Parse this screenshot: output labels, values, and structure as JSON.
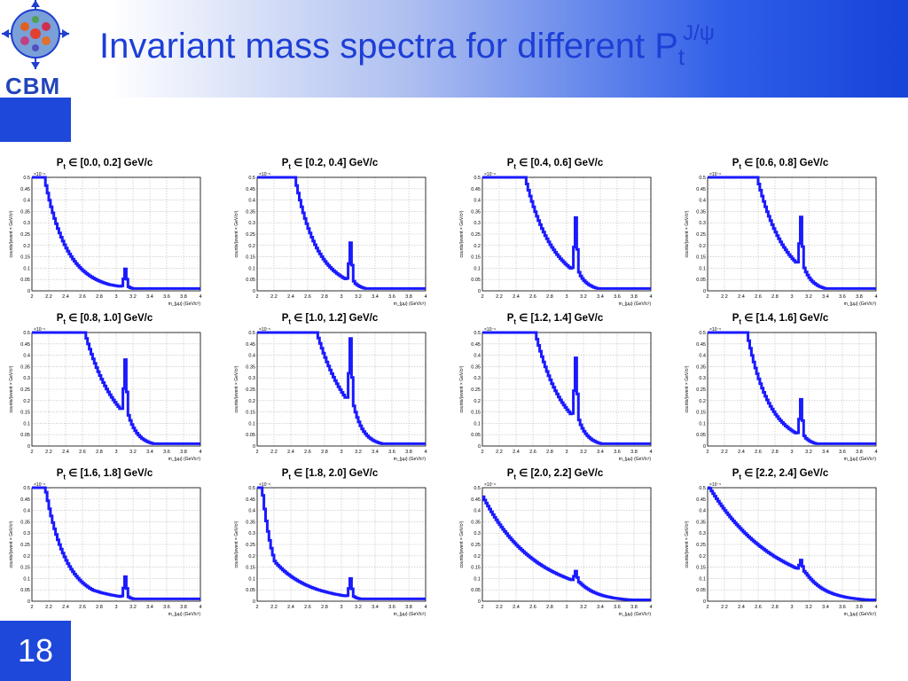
{
  "slide": {
    "title_main": "Invariant mass spectra for different P",
    "title_sub": "t",
    "title_sup": "J/ψ",
    "logo_text": "CBM",
    "page_number": "18"
  },
  "panel_common": {
    "title_prefix": "P",
    "title_sub": "t",
    "ylabel": "counts/(event × GeV/c²)",
    "xlabel": "m_{μμ} (GeV/c²)",
    "exponent": "×10⁻⁶",
    "x_ticks": [
      "2",
      "2.2",
      "2.4",
      "2.6",
      "2.8",
      "3",
      "3.2",
      "3.4",
      "3.6",
      "3.8",
      "4"
    ],
    "y_ticks": [
      "0",
      "0.05",
      "0.1",
      "0.15",
      "0.2",
      "0.25",
      "0.3",
      "0.35",
      "0.4",
      "0.45",
      "0.5"
    ],
    "grid": true,
    "line_color": "#1a1aff"
  },
  "chart_data": [
    {
      "type": "line",
      "title": "∈ [0.0, 0.2] GeV/c",
      "xlim": [
        2,
        4
      ],
      "ylim": [
        0,
        0.5
      ],
      "shape": {
        "knee": 2.14,
        "k": 0.24,
        "c": 0.21,
        "d": 2.05,
        "peak": 0.08,
        "sat": true
      }
    },
    {
      "type": "line",
      "title": "∈ [0.2, 0.4] GeV/c",
      "xlim": [
        2,
        4
      ],
      "ylim": [
        0,
        0.5
      ],
      "shape": {
        "knee": 2.44,
        "k": 0.24,
        "c": 0.21,
        "d": 2.25,
        "peak": 0.17,
        "sat": true
      }
    },
    {
      "type": "line",
      "title": "∈ [0.4, 0.6] GeV/c",
      "xlim": [
        2,
        4
      ],
      "ylim": [
        0,
        0.5
      ],
      "shape": {
        "knee": 2.5,
        "k": 0.3,
        "c": 0.2,
        "d": 2.3,
        "peak": 0.24,
        "sat": true
      }
    },
    {
      "type": "line",
      "title": "∈ [0.6, 0.8] GeV/c",
      "xlim": [
        2,
        4
      ],
      "ylim": [
        0,
        0.5
      ],
      "shape": {
        "knee": 2.58,
        "k": 0.3,
        "c": 0.2,
        "d": 2.35,
        "peak": 0.22,
        "sat": true
      }
    },
    {
      "type": "line",
      "title": "∈ [0.8, 1.0] GeV/c",
      "xlim": [
        2,
        4
      ],
      "ylim": [
        0,
        0.5
      ],
      "shape": {
        "knee": 2.62,
        "k": 0.34,
        "c": 0.19,
        "d": 2.4,
        "peak": 0.24,
        "sat": true
      }
    },
    {
      "type": "line",
      "title": "∈ [1.0, 1.2] GeV/c",
      "xlim": [
        2,
        4
      ],
      "ylim": [
        0,
        0.5
      ],
      "shape": {
        "knee": 2.7,
        "k": 0.36,
        "c": 0.18,
        "d": 2.45,
        "peak": 0.29,
        "sat": true
      }
    },
    {
      "type": "line",
      "title": "∈ [1.2, 1.4] GeV/c",
      "xlim": [
        2,
        4
      ],
      "ylim": [
        0,
        0.5
      ],
      "shape": {
        "knee": 2.62,
        "k": 0.3,
        "c": 0.19,
        "d": 2.4,
        "peak": 0.27,
        "sat": true
      }
    },
    {
      "type": "line",
      "title": "∈ [1.4, 1.6] GeV/c",
      "xlim": [
        2,
        4
      ],
      "ylim": [
        0,
        0.5
      ],
      "shape": {
        "knee": 2.46,
        "k": 0.24,
        "c": 0.21,
        "d": 2.25,
        "peak": 0.16,
        "sat": true
      }
    },
    {
      "type": "line",
      "title": "∈ [1.6, 1.8] GeV/c",
      "xlim": [
        2,
        4
      ],
      "ylim": [
        0,
        0.5
      ],
      "shape": {
        "knee": 2.15,
        "k": 0.22,
        "c": 0.22,
        "d": 2.05,
        "peak": 0.09,
        "sat": true
      }
    },
    {
      "type": "line",
      "title": "∈ [1.8, 2.0] GeV/c",
      "xlim": [
        2,
        4
      ],
      "ylim": [
        0,
        0.5
      ],
      "shape": {
        "knee": 2.05,
        "k": 0.13,
        "c": 0.25,
        "d": 1.9,
        "peak": 0.08,
        "sat": true
      }
    },
    {
      "type": "line",
      "title": "∈ [2.0, 2.2] GeV/c",
      "xlim": [
        2,
        4
      ],
      "ylim": [
        0,
        0.5
      ],
      "shape": {
        "knee": 2.0,
        "k": 0.0,
        "c": 0.27,
        "d": 1.6,
        "peak": 0.045,
        "sat": false
      }
    },
    {
      "type": "line",
      "title": "∈ [2.2, 2.4] GeV/c",
      "xlim": [
        2,
        4
      ],
      "ylim": [
        0,
        0.5
      ],
      "shape": {
        "knee": 2.0,
        "k": 0.0,
        "c": 0.32,
        "d": 1.25,
        "peak": 0.045,
        "sat": false
      }
    }
  ]
}
